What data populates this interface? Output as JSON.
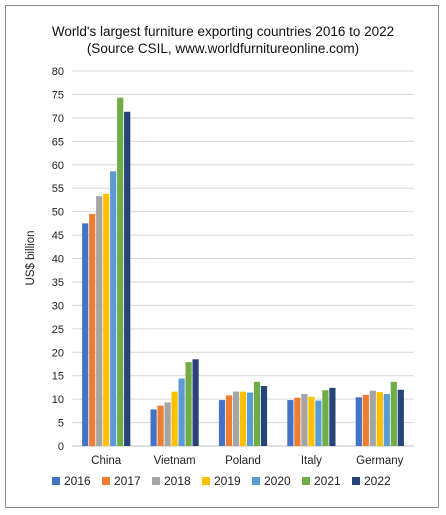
{
  "chart_data": {
    "type": "bar",
    "title": "World's largest furniture exporting countries 2016 to 2022",
    "subtitle": "(Source CSIL, www.worldfurnitureonline.com)",
    "xlabel": "",
    "ylabel": "US$ billion",
    "ylim": [
      0,
      80
    ],
    "yticks": [
      0,
      5,
      10,
      15,
      20,
      25,
      30,
      35,
      40,
      45,
      50,
      55,
      60,
      65,
      70,
      75,
      80
    ],
    "grid": true,
    "legend_position": "bottom",
    "categories": [
      "China",
      "Vietnam",
      "Poland",
      "Italy",
      "Germany"
    ],
    "series": [
      {
        "name": "2016",
        "color": "#4472C4",
        "values": [
          47.5,
          7.8,
          9.8,
          9.8,
          10.4
        ]
      },
      {
        "name": "2017",
        "color": "#ED7D31",
        "values": [
          49.5,
          8.6,
          10.8,
          10.3,
          10.9
        ]
      },
      {
        "name": "2018",
        "color": "#A5A5A5",
        "values": [
          53.3,
          9.3,
          11.6,
          11.1,
          11.8
        ]
      },
      {
        "name": "2019",
        "color": "#FFC000",
        "values": [
          53.8,
          11.6,
          11.6,
          10.5,
          11.5
        ]
      },
      {
        "name": "2020",
        "color": "#5B9BD5",
        "values": [
          58.6,
          14.4,
          11.4,
          9.7,
          11.1
        ]
      },
      {
        "name": "2021",
        "color": "#70AD47",
        "values": [
          74.3,
          17.9,
          13.7,
          11.9,
          13.7
        ]
      },
      {
        "name": "2022",
        "color": "#264478",
        "values": [
          71.3,
          18.5,
          12.8,
          12.4,
          12.0
        ]
      }
    ]
  }
}
